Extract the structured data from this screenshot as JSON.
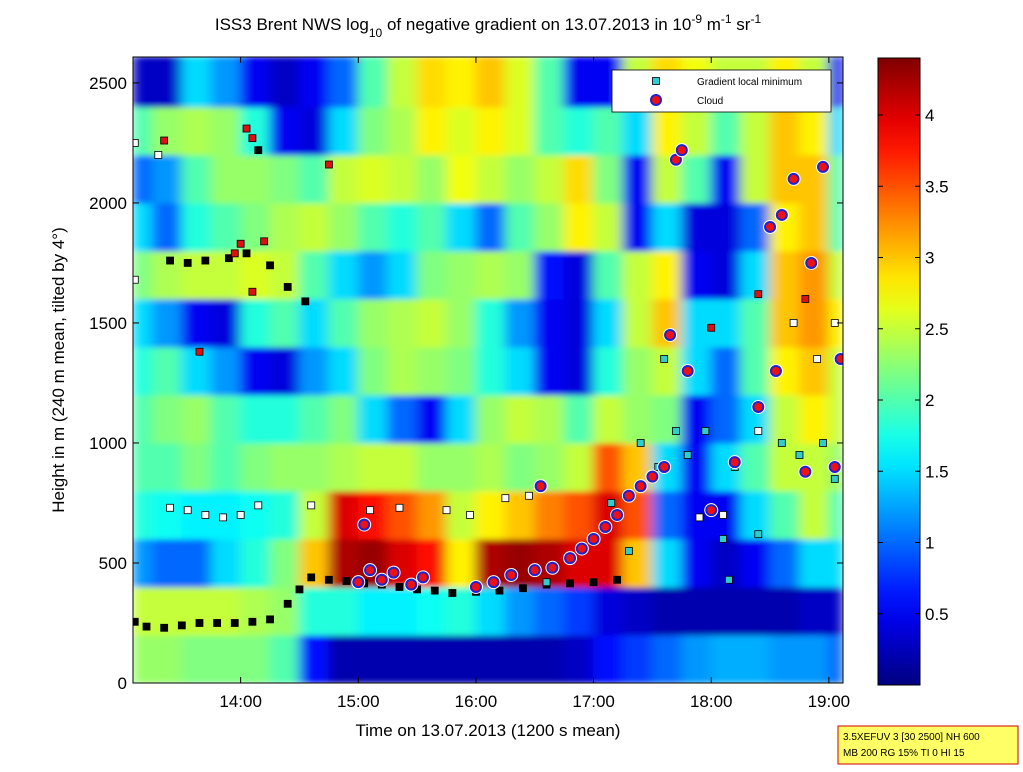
{
  "chart_data": {
    "type": "heatmap",
    "title_parts": [
      {
        "text": "ISS3 Brent NWS log"
      },
      {
        "text": "10",
        "shift": "sub"
      },
      {
        "text": " of negative gradient on 13.07.2013 in 10"
      },
      {
        "text": "-9",
        "shift": "super"
      },
      {
        "text": " m"
      },
      {
        "text": "-1",
        "shift": "super"
      },
      {
        "text": " sr"
      },
      {
        "text": "-1",
        "shift": "super"
      }
    ],
    "x_label": "Time on 13.07.2013 (1200 s mean)",
    "y_label": "Height in m (240 m mean, tilted by 4°)",
    "xlim": [
      13.085,
      19.12
    ],
    "xticks": [
      {
        "value": 14,
        "label": "14:00"
      },
      {
        "value": 15,
        "label": "15:00"
      },
      {
        "value": 16,
        "label": "16:00"
      },
      {
        "value": 17,
        "label": "17:00"
      },
      {
        "value": 18,
        "label": "18:00"
      },
      {
        "value": 19,
        "label": "19:00"
      }
    ],
    "ylim": [
      0,
      2608
    ],
    "yticks": [
      0,
      500,
      1000,
      1500,
      2000,
      2500
    ],
    "colormap": "jet",
    "zlim": [
      0,
      4.4
    ],
    "zticks": [
      0.5,
      1,
      1.5,
      2,
      2.5,
      3,
      3.5,
      4
    ],
    "heatmap": {
      "x_edges": [
        13.085,
        13.25,
        13.5,
        13.75,
        14,
        14.25,
        14.5,
        14.75,
        15,
        15.25,
        15.5,
        15.75,
        16,
        16.25,
        16.5,
        16.75,
        17,
        17.25,
        17.5,
        17.75,
        18,
        18.25,
        18.5,
        18.75,
        19,
        19.12
      ],
      "y_edges": [
        0,
        200,
        400,
        600,
        800,
        1000,
        1200,
        1400,
        1600,
        1800,
        2000,
        2200,
        2400,
        2608
      ],
      "values": [
        [
          2.3,
          2.3,
          2.2,
          2.2,
          2.2,
          2.0,
          0.6,
          0.2,
          0.2,
          0.2,
          0.2,
          0.2,
          0.2,
          0.2,
          0.2,
          0.3,
          0.6,
          0.8,
          1.0,
          1.2,
          1.3,
          1.3,
          1.2,
          1.2,
          1.0
        ],
        [
          2.5,
          2.5,
          2.5,
          2.5,
          2.4,
          2.3,
          1.8,
          1.8,
          1.6,
          1.6,
          1.7,
          1.8,
          1.5,
          1.2,
          1.0,
          0.8,
          0.4,
          0.3,
          0.2,
          0.2,
          0.2,
          0.2,
          0.2,
          0.3,
          0.3
        ],
        [
          1.2,
          1.0,
          1.0,
          1.5,
          1.8,
          2.2,
          3.0,
          4.2,
          4.3,
          4.0,
          3.8,
          2.8,
          4.2,
          4.3,
          4.2,
          4.0,
          4.0,
          3.0,
          1.5,
          0.5,
          0.3,
          0.5,
          1.0,
          1.5,
          1.5
        ],
        [
          1.8,
          1.7,
          1.6,
          1.6,
          1.7,
          1.8,
          2.5,
          4.0,
          3.8,
          3.5,
          3.2,
          2.5,
          2.8,
          3.0,
          3.3,
          3.5,
          4.0,
          3.5,
          1.0,
          0.5,
          0.5,
          1.5,
          2.0,
          2.5,
          2.0
        ],
        [
          2.0,
          2.0,
          2.2,
          2.0,
          2.2,
          2.3,
          2.3,
          2.4,
          2.5,
          2.5,
          2.3,
          2.3,
          2.4,
          2.2,
          2.3,
          2.5,
          3.5,
          3.0,
          1.5,
          0.5,
          1.5,
          2.0,
          2.5,
          2.5,
          2.3
        ],
        [
          2.0,
          2.2,
          2.3,
          2.0,
          1.8,
          1.8,
          2.0,
          2.2,
          1.5,
          1.0,
          0.5,
          1.5,
          2.3,
          2.5,
          2.4,
          2.0,
          2.5,
          2.3,
          2.2,
          0.5,
          1.0,
          1.5,
          2.5,
          2.8,
          2.5
        ],
        [
          1.8,
          2.0,
          1.5,
          1.2,
          0.5,
          0.4,
          1.2,
          1.5,
          2.2,
          2.4,
          2.3,
          2.2,
          1.8,
          1.5,
          0.5,
          0.4,
          1.8,
          2.3,
          2.5,
          1.5,
          1.0,
          2.0,
          2.8,
          3.0,
          2.5
        ],
        [
          1.5,
          1.2,
          0.5,
          0.4,
          1.8,
          2.0,
          1.5,
          2.0,
          2.3,
          2.4,
          2.5,
          2.3,
          1.8,
          1.2,
          0.5,
          0.4,
          1.5,
          2.5,
          3.0,
          1.5,
          1.5,
          2.0,
          3.0,
          3.2,
          2.8
        ],
        [
          2.2,
          2.4,
          2.5,
          2.5,
          2.6,
          2.5,
          2.0,
          1.5,
          1.2,
          1.5,
          2.2,
          2.3,
          2.4,
          2.3,
          0.6,
          0.4,
          2.0,
          2.5,
          2.8,
          0.5,
          0.4,
          1.5,
          3.0,
          3.2,
          2.5
        ],
        [
          1.5,
          1.0,
          1.8,
          2.0,
          2.2,
          2.4,
          2.5,
          2.3,
          2.0,
          1.8,
          2.0,
          1.5,
          1.0,
          2.0,
          2.3,
          2.8,
          2.5,
          0.5,
          1.5,
          0.4,
          0.4,
          1.0,
          2.8,
          3.0,
          2.0
        ],
        [
          1.0,
          1.2,
          2.0,
          2.3,
          2.3,
          2.2,
          2.0,
          2.5,
          2.6,
          2.5,
          2.3,
          2.7,
          2.5,
          2.3,
          2.5,
          2.9,
          2.2,
          0.5,
          2.5,
          2.0,
          0.5,
          2.5,
          3.0,
          3.0,
          2.0
        ],
        [
          2.0,
          2.3,
          2.4,
          2.3,
          1.8,
          0.5,
          0.4,
          1.5,
          2.2,
          2.4,
          2.8,
          2.6,
          2.8,
          2.6,
          2.0,
          1.8,
          2.0,
          1.5,
          2.8,
          2.5,
          2.0,
          2.5,
          3.0,
          2.8,
          1.5
        ],
        [
          0.3,
          0.3,
          1.5,
          1.2,
          0.5,
          0.3,
          0.5,
          1.0,
          2.0,
          2.5,
          2.9,
          2.8,
          3.0,
          2.6,
          2.0,
          0.5,
          0.5,
          2.5,
          2.9,
          2.7,
          2.5,
          2.5,
          2.8,
          2.5,
          0.5
        ]
      ]
    },
    "series": [
      {
        "name": "Gradient local minimum",
        "marker": "square",
        "color": "#33cccc",
        "x": [
          13.1,
          13.2,
          13.35,
          13.5,
          13.65,
          13.8,
          13.95,
          14.1,
          14.25,
          14.4,
          14.5,
          14.6,
          14.75,
          14.9,
          15.05,
          15.2,
          15.35,
          15.5,
          15.65,
          15.8,
          16.0,
          16.2,
          16.4,
          16.6,
          16.8,
          17.0,
          17.2,
          13.1,
          13.1,
          13.3,
          13.4,
          13.55,
          13.7,
          13.85,
          14.0,
          14.15,
          14.6,
          15.1,
          15.35,
          15.75,
          15.95,
          16.25,
          16.45,
          17.9,
          18.1,
          18.7,
          19.05,
          18.9,
          18.4,
          13.4,
          13.55,
          13.7,
          13.9,
          14.05,
          14.25,
          14.4,
          14.55,
          14.15,
          13.35,
          13.65,
          13.95,
          14.0,
          14.05,
          14.1,
          14.2,
          14.75,
          14.1,
          18.0,
          18.4,
          18.8,
          17.4,
          17.55,
          17.7,
          17.8,
          17.95,
          18.2,
          18.4,
          18.6,
          18.75,
          18.95,
          19.05,
          17.3,
          17.15,
          16.6,
          18.1,
          17.6,
          18.15
        ],
        "y": [
          255,
          235,
          230,
          240,
          250,
          250,
          250,
          255,
          265,
          330,
          390,
          440,
          430,
          425,
          415,
          410,
          400,
          390,
          385,
          375,
          380,
          385,
          395,
          410,
          415,
          420,
          430,
          1680,
          2250,
          2200,
          730,
          720,
          700,
          690,
          700,
          740,
          740,
          720,
          730,
          720,
          700,
          770,
          780,
          690,
          700,
          1500,
          1500,
          1350,
          1050,
          1760,
          1750,
          1760,
          1770,
          1790,
          1740,
          1650,
          1590,
          2220,
          2260,
          1380,
          1790,
          1830,
          2310,
          2270,
          1840,
          2160,
          1630,
          1480,
          1620,
          1600,
          1000,
          900,
          1050,
          950,
          1050,
          900,
          620,
          1000,
          950,
          1000,
          850,
          550,
          750,
          420,
          600,
          1350,
          430
        ],
        "point_colors": [
          "#000000",
          "#000000",
          "#000000",
          "#000000",
          "#000000",
          "#000000",
          "#000000",
          "#000000",
          "#000000",
          "#000000",
          "#000000",
          "#000000",
          "#000000",
          "#000000",
          "#000000",
          "#000000",
          "#000000",
          "#000000",
          "#000000",
          "#000000",
          "#000000",
          "#000000",
          "#000000",
          "#000000",
          "#000000",
          "#000000",
          "#000000",
          "#ffffff",
          "#ffffff",
          "#ffffff",
          "#ffffff",
          "#ffffff",
          "#ffffff",
          "#ffffff",
          "#ffffff",
          "#ffffff",
          "#ffffff",
          "#ffffff",
          "#ffffff",
          "#ffffff",
          "#ffffff",
          "#ffffff",
          "#ffffff",
          "#ffffff",
          "#ffffff",
          "#ffffff",
          "#ffffff",
          "#ffffff",
          "#ffffff",
          "#000000",
          "#000000",
          "#000000",
          "#000000",
          "#000000",
          "#000000",
          "#000000",
          "#000000",
          "#000000",
          "#dd1111",
          "#dd1111",
          "#dd1111",
          "#dd1111",
          "#dd1111",
          "#dd1111",
          "#dd1111",
          "#dd1111",
          "#dd1111",
          "#dd1111",
          "#dd1111",
          "#dd1111",
          "#33cccc",
          "#33cccc",
          "#33cccc",
          "#33cccc",
          "#33cccc",
          "#33cccc",
          "#33cccc",
          "#33cccc",
          "#33cccc",
          "#33cccc",
          "#33cccc",
          "#33cccc",
          "#33cccc",
          "#33cccc",
          "#33cccc",
          "#33cccc",
          "#33cccc"
        ]
      },
      {
        "name": "Cloud",
        "marker": "circle",
        "color": "#ee1111",
        "edge_color": "#2222cc",
        "x": [
          15.0,
          15.1,
          15.2,
          15.3,
          15.45,
          15.55,
          16.0,
          16.15,
          16.3,
          16.5,
          16.65,
          16.8,
          16.9,
          17.0,
          17.1,
          17.2,
          17.3,
          17.4,
          17.5,
          17.6,
          17.7,
          17.75,
          17.65,
          17.8,
          18.0,
          18.2,
          18.4,
          18.5,
          18.6,
          18.7,
          18.85,
          18.95,
          19.05,
          19.1,
          15.05,
          16.55,
          18.8,
          18.55
        ],
        "y": [
          420,
          470,
          430,
          460,
          410,
          440,
          400,
          420,
          450,
          470,
          480,
          520,
          560,
          600,
          650,
          700,
          780,
          820,
          860,
          900,
          2180,
          2220,
          1450,
          1300,
          720,
          920,
          1150,
          1900,
          1950,
          2100,
          1750,
          2150,
          900,
          1350,
          660,
          820,
          880,
          1300
        ]
      }
    ],
    "legend": "upper right",
    "annotation": [
      "3.5XEFUV 3 [30 2500] NH 600",
      "MB 200 RG 15% TI 0 HI 15"
    ]
  }
}
